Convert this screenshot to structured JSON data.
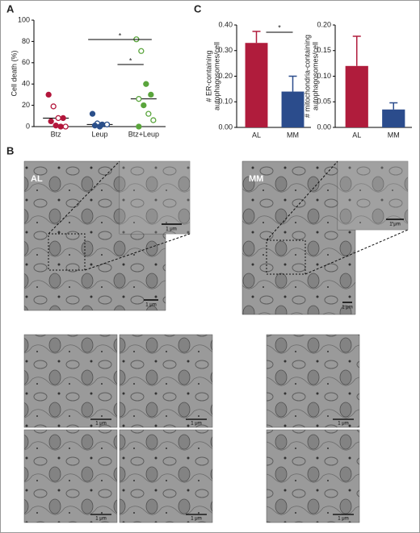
{
  "panel_labels": [
    "A",
    "B",
    "C"
  ],
  "micrographs": {
    "labels": [
      "AL",
      "MM"
    ],
    "scale_bar": "1 μm"
  },
  "chart_data": [
    {
      "type": "dot",
      "ylabel": "Cell death (%)",
      "categories": [
        "Btz",
        "Leup",
        "Btz+Leup"
      ],
      "values": [
        [
          30,
          19,
          8,
          8,
          5,
          1,
          0,
          0
        ],
        [
          12,
          3,
          2,
          2,
          1,
          0
        ],
        [
          82,
          71,
          40,
          30,
          26,
          20,
          12,
          6,
          0
        ]
      ],
      "filled": [
        [
          true,
          false,
          false,
          true,
          true,
          true,
          true,
          false
        ],
        [
          true,
          false,
          true,
          false,
          true,
          true
        ],
        [
          false,
          false,
          true,
          true,
          false,
          true,
          false,
          false,
          true
        ]
      ],
      "medians": [
        8,
        2,
        26
      ],
      "colors": [
        "#b3163b",
        "#2a4f8a",
        "#5aa53c"
      ],
      "ylim": [
        0,
        100
      ],
      "yticks": [
        0,
        20,
        40,
        60,
        80,
        100
      ],
      "annotations": [
        "*",
        "*"
      ]
    },
    {
      "type": "bar",
      "ylabel": [
        "# ER-containing",
        "autophagosomes/cell"
      ],
      "categories": [
        "AL",
        "MM"
      ],
      "values": [
        0.33,
        0.14
      ],
      "errors": [
        0.045,
        0.06
      ],
      "colors": [
        "#b01c3c",
        "#2b4c8c"
      ],
      "ylim": [
        0,
        0.4
      ],
      "yticks": [
        {
          "value": 0,
          "label": "0.00"
        },
        {
          "value": 0.1,
          "label": "0.10"
        },
        {
          "value": 0.2,
          "label": "0.20"
        },
        {
          "value": 0.3,
          "label": "0.30"
        },
        {
          "value": 0.4,
          "label": "0.40"
        }
      ],
      "annotations": [
        "*"
      ]
    },
    {
      "type": "bar",
      "ylabel": [
        "# mitochondria-containing",
        "autophagosomes/cell"
      ],
      "categories": [
        "AL",
        "MM"
      ],
      "values": [
        0.12,
        0.035
      ],
      "errors": [
        0.058,
        0.013
      ],
      "colors": [
        "#b01c3c",
        "#2b4c8c"
      ],
      "ylim": [
        0,
        0.2
      ],
      "yticks": [
        {
          "value": 0,
          "label": "0.00"
        },
        {
          "value": 0.05,
          "label": "0.05"
        },
        {
          "value": 0.1,
          "label": "0.10"
        },
        {
          "value": 0.15,
          "label": "0.15"
        },
        {
          "value": 0.2,
          "label": "0.20"
        }
      ]
    }
  ]
}
